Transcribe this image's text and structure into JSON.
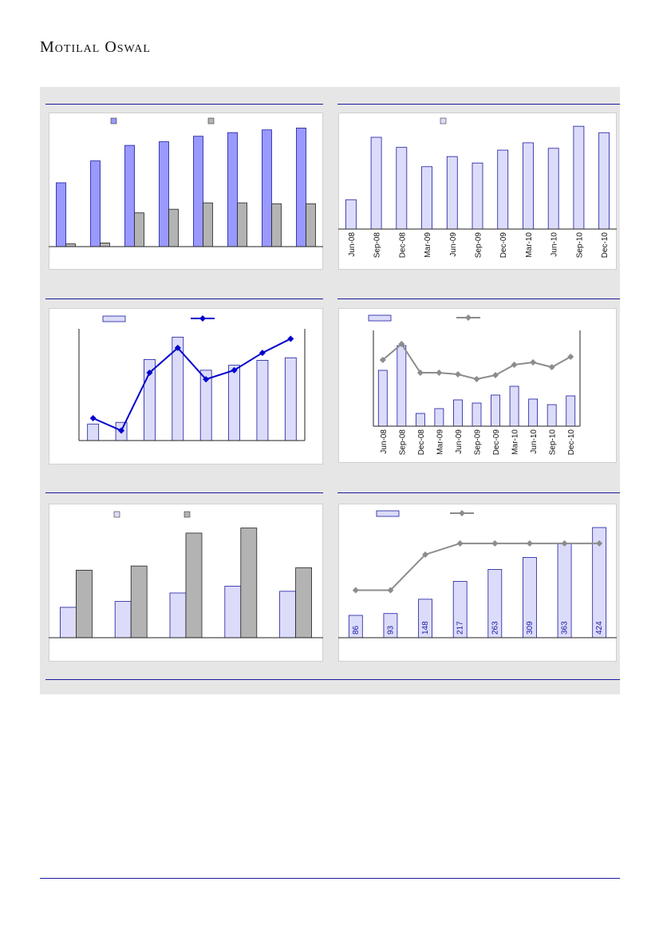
{
  "header": {
    "brand": "Motilal Oswal"
  },
  "colors": {
    "panel_bg": "#e6e6e6",
    "rule": "#1a1aa0",
    "bar_blue": "#9999ff",
    "bar_gray": "#b3b3b3",
    "bar_light": "#dcdcfa",
    "bar_edge": "#1a1aa0",
    "line_blue": "#0000cc",
    "line_gray": "#8c8c8c"
  },
  "chart_data": [
    {
      "type": "bar",
      "legend": [
        "",
        ""
      ],
      "categories": [
        "",
        "",
        "",
        "",
        "",
        "",
        "",
        ""
      ],
      "series": [
        {
          "values": [
            70,
            94,
            111,
            115,
            121,
            125,
            128,
            130
          ]
        },
        {
          "values": [
            3,
            4,
            37,
            41,
            48,
            48,
            47,
            47
          ]
        }
      ],
      "ylim": [
        0,
        140
      ]
    },
    {
      "type": "bar",
      "legend": [
        ""
      ],
      "categories": [
        "Jun-08",
        "Sep-08",
        "Dec-08",
        "Mar-09",
        "Jun-09",
        "Sep-09",
        "Dec-09",
        "Mar-10",
        "Jun-10",
        "Sep-10",
        "Dec-10"
      ],
      "series": [
        {
          "values": [
            32,
            100,
            89,
            68,
            79,
            72,
            86,
            94,
            88,
            112,
            105
          ]
        }
      ],
      "ylim": [
        0,
        120
      ]
    },
    {
      "type": "bar",
      "legend": [
        "",
        ""
      ],
      "categories": [
        "",
        "",
        "",
        "",
        "",
        "",
        "",
        ""
      ],
      "series": [
        {
          "type": "bar",
          "values": [
            20,
            22,
            98,
            125,
            85,
            91,
            97,
            100
          ]
        },
        {
          "type": "line",
          "values": [
            27,
            12,
            82,
            112,
            74,
            85,
            106,
            123
          ]
        }
      ],
      "ylim": [
        0,
        135
      ]
    },
    {
      "type": "bar",
      "legend": [
        "",
        ""
      ],
      "categories": [
        "Jun-08",
        "Sep-08",
        "Dec-08",
        "Mar-09",
        "Jun-09",
        "Sep-09",
        "Dec-09",
        "Mar-10",
        "Jun-10",
        "Sep-10",
        "Dec-10"
      ],
      "series": [
        {
          "type": "bar",
          "values": [
            70,
            101,
            16,
            22,
            33,
            29,
            39,
            50,
            34,
            27,
            38
          ]
        },
        {
          "type": "line",
          "values": [
            83,
            103,
            67,
            67,
            65,
            59,
            64,
            77,
            80,
            74,
            87
          ]
        }
      ],
      "ylim": [
        0,
        120
      ]
    },
    {
      "type": "bar",
      "legend": [
        "",
        ""
      ],
      "categories": [
        "",
        "",
        "",
        "",
        ""
      ],
      "series": [
        {
          "values": [
            36,
            43,
            53,
            61,
            55
          ]
        },
        {
          "values": [
            80,
            85,
            124,
            130,
            83
          ]
        }
      ],
      "ylim": [
        0,
        140
      ]
    },
    {
      "type": "bar",
      "legend": [
        "",
        ""
      ],
      "categories": [
        "",
        "",
        "",
        "",
        "",
        "",
        "",
        ""
      ],
      "series": [
        {
          "type": "bar",
          "values": [
            86,
            93,
            148,
            217,
            263,
            309,
            363,
            424
          ]
        },
        {
          "type": "line",
          "values": [
            183,
            183,
            320,
            363,
            363,
            363,
            363,
            363
          ]
        }
      ],
      "ylim": [
        0,
        424
      ]
    }
  ]
}
